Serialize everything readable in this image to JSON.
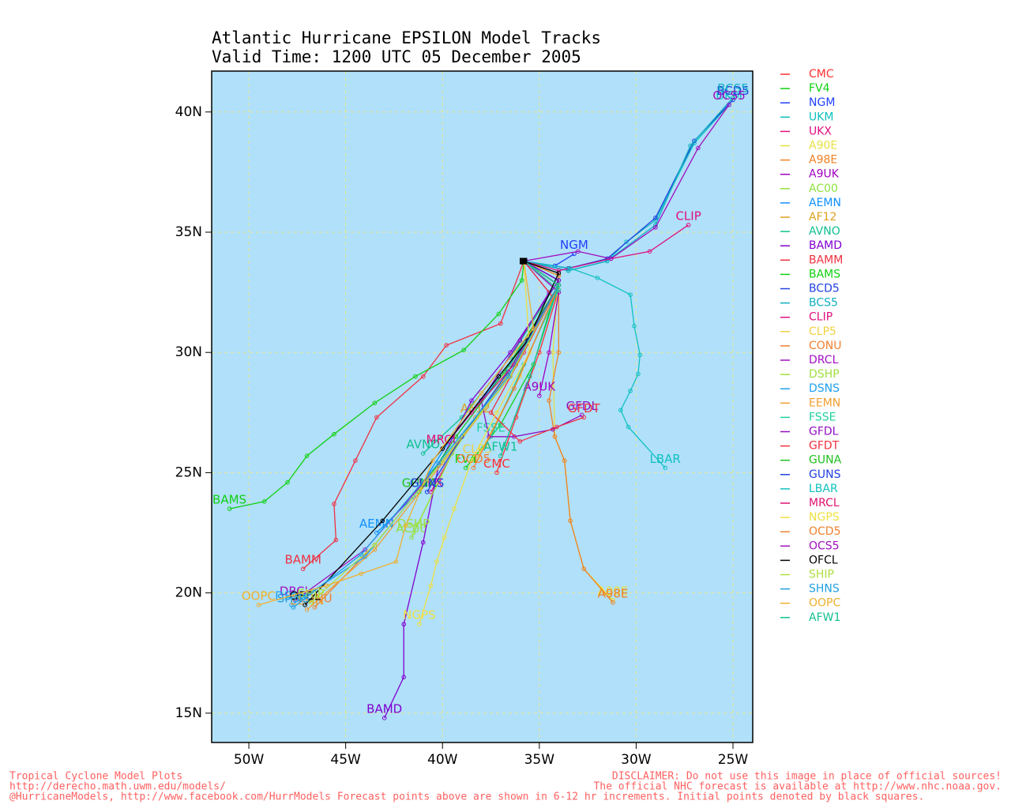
{
  "chart_data": {
    "type": "line",
    "title": "Atlantic Hurricane EPSILON Model Tracks",
    "subtitle": "Valid Time: 1200 UTC 05 December 2005",
    "xlim": [
      -51.92,
      -23.98
    ],
    "ylim": [
      13.78,
      41.7
    ],
    "xticks": [
      {
        "value": -50,
        "label": "50W"
      },
      {
        "value": -45,
        "label": "45W"
      },
      {
        "value": -40,
        "label": "40W"
      },
      {
        "value": -35,
        "label": "35W"
      },
      {
        "value": -30,
        "label": "30W"
      },
      {
        "value": -25,
        "label": "25W"
      }
    ],
    "yticks": [
      {
        "value": 15,
        "label": "15N"
      },
      {
        "value": 20,
        "label": "20N"
      },
      {
        "value": 25,
        "label": "25N"
      },
      {
        "value": 30,
        "label": "30N"
      },
      {
        "value": 35,
        "label": "35N"
      },
      {
        "value": 40,
        "label": "40N"
      }
    ],
    "grid": true,
    "series": [
      {
        "name": "CMC",
        "color": "#ff3030",
        "x": [
          -35.8,
          -34.0,
          -35.0,
          -36.2,
          -37.2
        ],
        "y": [
          33.8,
          32.6,
          30.0,
          27.3,
          25.0
        ]
      },
      {
        "name": "FV4",
        "color": "#10d010",
        "x": [
          -35.8,
          -34.0,
          -35.3,
          -37.0,
          -38.8
        ],
        "y": [
          33.8,
          33.0,
          29.5,
          27.0,
          25.2
        ]
      },
      {
        "name": "NGM",
        "color": "#2040ff",
        "x": [
          -35.8,
          -34.2,
          -33.2
        ],
        "y": [
          33.8,
          33.6,
          34.1
        ]
      },
      {
        "name": "UKM",
        "color": "#10c0c0",
        "x": [
          -35.8,
          -33.5,
          -31.5,
          -30.5,
          -29.0,
          -27.0,
          -25.2
        ],
        "y": [
          33.8,
          33.4,
          33.8,
          34.6,
          35.5,
          38.7,
          40.3
        ]
      },
      {
        "name": "UKX",
        "color": "#e01080",
        "x": [
          -35.8,
          -34.0,
          -36.5,
          -39.0,
          -40.6
        ],
        "y": [
          33.8,
          32.8,
          29.0,
          26.5,
          24.2
        ]
      },
      {
        "name": "A90E",
        "color": "#e8e040",
        "x": [
          -35.8,
          -34.0,
          -34.3,
          -34.2,
          -33.7,
          -33.4,
          -32.7,
          -31.2
        ],
        "y": [
          33.8,
          33.2,
          30.0,
          26.5,
          25.5,
          23.0,
          21.0,
          19.7
        ]
      },
      {
        "name": "A98E",
        "color": "#f08020",
        "x": [
          -35.8,
          -34.0,
          -34.0,
          -34.5,
          -34.2,
          -33.7,
          -33.4,
          -32.7,
          -31.2
        ],
        "y": [
          33.8,
          33.2,
          30.0,
          28.0,
          26.5,
          25.5,
          23.0,
          21.0,
          19.6
        ]
      },
      {
        "name": "A9UK",
        "color": "#a000c0",
        "x": [
          -35.8,
          -34.0,
          -34.5,
          -35.0
        ],
        "y": [
          33.8,
          32.5,
          30.0,
          28.2
        ]
      },
      {
        "name": "AC00",
        "color": "#90e040",
        "x": [
          -35.8,
          -34.0,
          -36.8,
          -39.5,
          -41.6
        ],
        "y": [
          33.8,
          32.8,
          29.0,
          25.8,
          22.3
        ]
      },
      {
        "name": "AEMN",
        "color": "#1090ff",
        "x": [
          -35.8,
          -34.0,
          -36.5,
          -39.5,
          -41.5,
          -43.4
        ],
        "y": [
          33.8,
          32.8,
          29.5,
          26.5,
          24.0,
          22.5
        ]
      },
      {
        "name": "AF12",
        "color": "#e0a020",
        "x": [
          -35.8,
          -34.0,
          -36.2,
          -38.3
        ],
        "y": [
          33.8,
          32.8,
          29.5,
          27.3
        ]
      },
      {
        "name": "AVNO",
        "color": "#10c090",
        "x": [
          -35.8,
          -34.0,
          -36.5,
          -39.0,
          -41.0
        ],
        "y": [
          33.8,
          33.0,
          29.8,
          27.3,
          25.8
        ]
      },
      {
        "name": "BAMD",
        "color": "#8000d0",
        "x": [
          -35.8,
          -34.0,
          -36.5,
          -38.5,
          -40.2,
          -41.0,
          -42.0,
          -42.0,
          -43.0
        ],
        "y": [
          33.8,
          33.0,
          30.0,
          28.0,
          25.3,
          22.1,
          18.7,
          16.5,
          14.8
        ]
      },
      {
        "name": "BAMM",
        "color": "#f03040",
        "x": [
          -35.8,
          -37.0,
          -39.8,
          -41.0,
          -43.4,
          -44.5,
          -45.6,
          -45.5,
          -47.2
        ],
        "y": [
          33.8,
          31.2,
          30.3,
          29.0,
          27.3,
          25.5,
          23.7,
          22.2,
          21.0
        ]
      },
      {
        "name": "BAMS",
        "color": "#10d010",
        "x": [
          -35.8,
          -35.9,
          -37.1,
          -38.9,
          -41.4,
          -43.5,
          -45.6,
          -47.0,
          -48.0,
          -49.2,
          -51.0
        ],
        "y": [
          33.8,
          33.0,
          31.6,
          30.1,
          29.0,
          27.9,
          26.6,
          25.7,
          24.6,
          23.8,
          23.5
        ]
      },
      {
        "name": "BCD5",
        "color": "#2040e0",
        "x": [
          -35.8,
          -33.5,
          -31.5,
          -29.0,
          -27.0,
          -25.0
        ],
        "y": [
          33.8,
          33.5,
          33.9,
          35.6,
          38.8,
          40.5
        ]
      },
      {
        "name": "BCS5",
        "color": "#10b0c0",
        "x": [
          -35.8,
          -33.5,
          -31.5,
          -29.0,
          -27.2,
          -25.0
        ],
        "y": [
          33.8,
          33.4,
          33.8,
          35.3,
          38.6,
          40.6
        ]
      },
      {
        "name": "CLIP",
        "color": "#e01080",
        "x": [
          -35.8,
          -34.0,
          -31.3,
          -29.3,
          -27.3
        ],
        "y": [
          33.8,
          33.4,
          33.9,
          34.2,
          35.3
        ]
      },
      {
        "name": "CLP5",
        "color": "#f0d040",
        "x": [
          -35.8,
          -34.0,
          -36.0,
          -38.2
        ],
        "y": [
          33.8,
          32.8,
          29.0,
          25.6
        ]
      },
      {
        "name": "CONU",
        "color": "#f08030",
        "x": [
          -35.8,
          -34.0,
          -36.5,
          -40.0,
          -43.5,
          -46.6
        ],
        "y": [
          33.8,
          32.8,
          29.0,
          25.5,
          22.0,
          19.4
        ]
      },
      {
        "name": "DRCL",
        "color": "#a010c0",
        "x": [
          -35.8,
          -34.0,
          -36.5,
          -40.0,
          -44.0,
          -47.6
        ],
        "y": [
          33.8,
          32.8,
          29.0,
          25.5,
          21.8,
          19.7
        ]
      },
      {
        "name": "DSHP",
        "color": "#a0e040",
        "x": [
          -35.8,
          -34.0,
          -36.8,
          -39.5,
          -41.5
        ],
        "y": [
          33.8,
          32.8,
          29.0,
          25.8,
          22.5
        ]
      },
      {
        "name": "DSNS",
        "color": "#20a0f0",
        "x": [
          -35.8,
          -34.0,
          -36.5,
          -40.0,
          -44.0,
          -47.8
        ],
        "y": [
          33.8,
          32.8,
          29.0,
          25.5,
          21.5,
          19.5
        ]
      },
      {
        "name": "EEMN",
        "color": "#f0a030",
        "x": [
          -35.8,
          -34.0,
          -36.5,
          -40.0,
          -43.5,
          -47.0
        ],
        "y": [
          33.8,
          32.8,
          29.0,
          25.4,
          21.8,
          19.3
        ]
      },
      {
        "name": "FSSE",
        "color": "#20d0a0",
        "x": [
          -35.8,
          -34.0,
          -35.8,
          -37.5
        ],
        "y": [
          33.8,
          32.6,
          29.5,
          26.5
        ]
      },
      {
        "name": "GFDL",
        "color": "#9010c0",
        "x": [
          -35.8,
          -34.5,
          -36.0,
          -38.0,
          -37.6,
          -36.3,
          -34.3,
          -32.8
        ],
        "y": [
          33.8,
          32.5,
          30.5,
          28.0,
          26.5,
          26.5,
          26.8,
          27.4
        ]
      },
      {
        "name": "GFDT",
        "color": "#f03040",
        "x": [
          -35.8,
          -34.3,
          -35.8,
          -37.5,
          -36.0,
          -34.1,
          -32.7
        ],
        "y": [
          33.8,
          32.3,
          30.0,
          27.5,
          26.3,
          26.9,
          27.3
        ]
      },
      {
        "name": "GUNA",
        "color": "#20c020",
        "x": [
          -35.8,
          -34.0,
          -36.8,
          -39.3,
          -41.2
        ],
        "y": [
          33.8,
          32.8,
          29.2,
          26.5,
          24.2
        ]
      },
      {
        "name": "GUNS",
        "color": "#2040e0",
        "x": [
          -35.8,
          -34.0,
          -36.6,
          -39.0,
          -40.8
        ],
        "y": [
          33.8,
          32.8,
          29.2,
          26.5,
          24.2
        ]
      },
      {
        "name": "LBAR",
        "color": "#10c0c0",
        "x": [
          -35.8,
          -33.4,
          -32.0,
          -30.3,
          -30.1,
          -29.8,
          -29.9,
          -30.3,
          -30.8,
          -30.4,
          -28.5
        ],
        "y": [
          33.8,
          33.5,
          33.1,
          32.4,
          31.1,
          29.9,
          29.1,
          28.4,
          27.6,
          26.9,
          25.2
        ]
      },
      {
        "name": "MRCL",
        "color": "#e01070",
        "x": [
          -35.8,
          -34.0,
          -36.3,
          -38.5,
          -40.0
        ],
        "y": [
          33.8,
          32.8,
          29.5,
          27.5,
          26.0
        ]
      },
      {
        "name": "NGPS",
        "color": "#f0e040",
        "x": [
          -35.8,
          -35.5,
          -37.2,
          -38.5,
          -39.4,
          -39.9,
          -40.3,
          -40.6,
          -41.2
        ],
        "y": [
          33.8,
          30.0,
          27.5,
          25.5,
          23.5,
          22.3,
          21.3,
          20.3,
          18.7
        ]
      },
      {
        "name": "OCD5",
        "color": "#f08030",
        "x": [
          -35.8,
          -34.0,
          -36.3,
          -38.4
        ],
        "y": [
          33.8,
          32.8,
          28.5,
          25.2
        ]
      },
      {
        "name": "OCS5",
        "color": "#a010c0",
        "x": [
          -35.8,
          -33.0,
          -31.3,
          -29.0,
          -26.8,
          -25.2
        ],
        "y": [
          33.8,
          34.2,
          33.9,
          35.2,
          38.5,
          40.3
        ]
      },
      {
        "name": "OFCL",
        "color": "#000000",
        "x": [
          -35.85,
          -34.0,
          -35.6,
          -37.1,
          -40.0,
          -43.1,
          -47.1
        ],
        "y": [
          33.8,
          33.3,
          30.5,
          29.0,
          26.0,
          23.0,
          19.5
        ]
      },
      {
        "name": "SHIP",
        "color": "#b0e040",
        "x": [
          -35.8,
          -34.0,
          -36.5,
          -40.0,
          -43.5,
          -46.8
        ],
        "y": [
          33.8,
          32.8,
          29.0,
          25.5,
          22.0,
          19.6
        ]
      },
      {
        "name": "SHNS",
        "color": "#20a0e0",
        "x": [
          -35.8,
          -34.0,
          -36.6,
          -40.2,
          -44.2,
          -47.7
        ],
        "y": [
          33.8,
          32.8,
          29.0,
          25.4,
          21.6,
          19.4
        ]
      },
      {
        "name": "OOPC",
        "color": "#f0b030",
        "x": [
          -35.8,
          -35.3,
          -38.0,
          -40.5,
          -41.9,
          -42.4,
          -44.2,
          -46.0,
          -49.5
        ],
        "y": [
          33.8,
          31.0,
          28.3,
          25.5,
          22.8,
          21.3,
          20.8,
          20.3,
          19.5
        ]
      },
      {
        "name": "AFW1",
        "color": "#10c090",
        "x": [
          -35.8,
          -34.0,
          -35.5,
          -37.0
        ],
        "y": [
          33.8,
          32.8,
          29.0,
          25.7
        ]
      }
    ]
  },
  "footer": {
    "left": [
      "Tropical Cyclone Model Plots",
      "http://derecho.math.uwm.edu/models/",
      "@HurricaneModels, http://www.facebook.com/HurrModels  Forecast points above are shown in 6-12 hr increments. Initial points denoted by black squares."
    ],
    "right": [
      "DISCLAIMER: Do not use this image in place of official sources!",
      "The official NHC forecast is available at http://www.nhc.noaa.gov.",
      ""
    ]
  }
}
